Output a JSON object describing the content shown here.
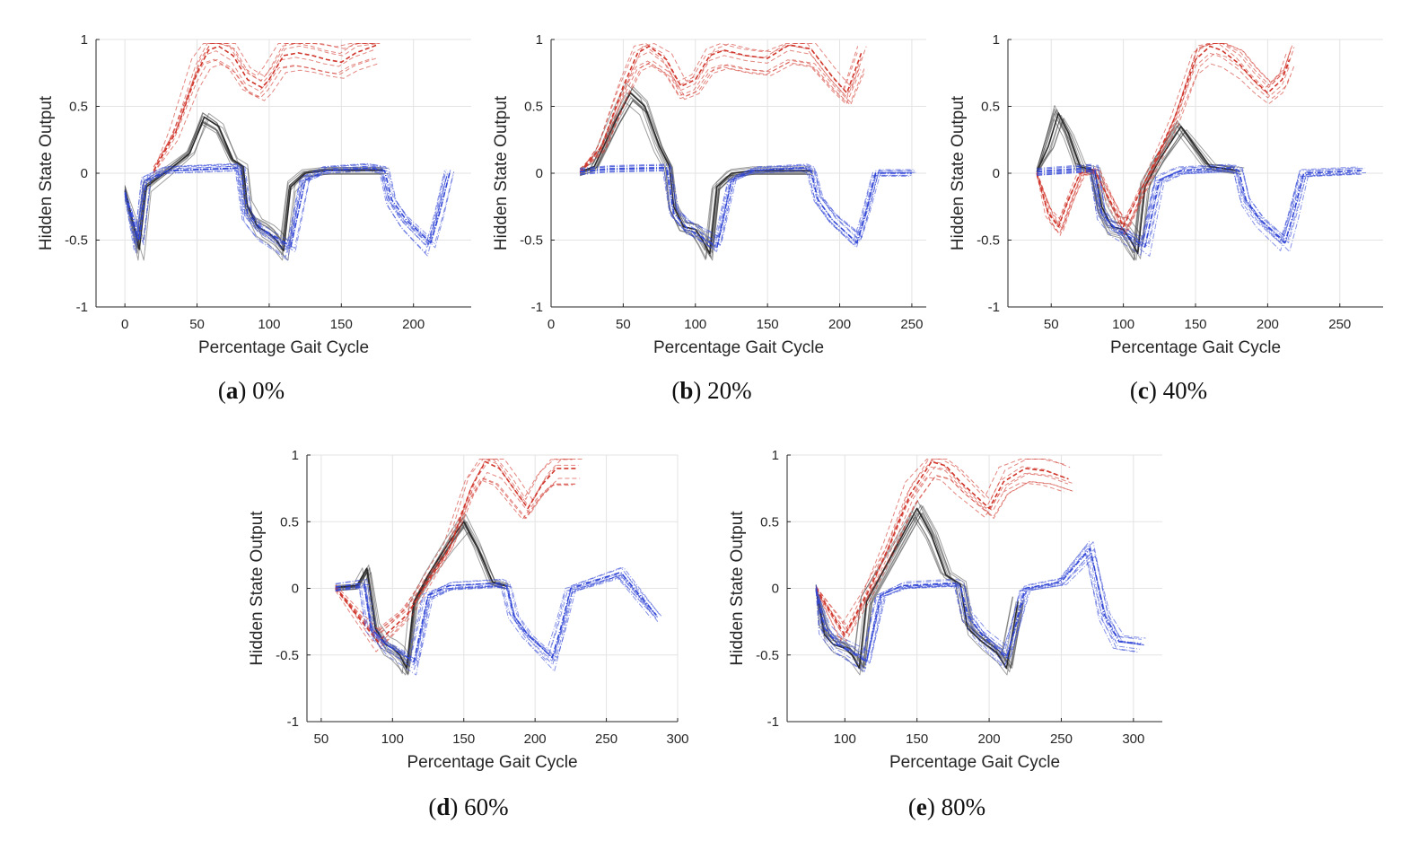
{
  "chart_data": [
    {
      "type": "line",
      "panel": "a",
      "caption": {
        "label": "a",
        "value": "0%"
      },
      "xlabel": "Percentage Gait Cycle",
      "ylabel": "Hidden State Output",
      "xlim": [
        -20,
        240
      ],
      "ylim": [
        -1,
        1
      ],
      "xticks": [
        0,
        50,
        100,
        150,
        200
      ],
      "yticks": [
        -1,
        -0.5,
        0,
        0.5,
        1
      ],
      "grid": true,
      "series": [
        {
          "name": "black-solid",
          "color": "#2b2b2b",
          "dash": "",
          "x": [
            0,
            10,
            15,
            30,
            45,
            55,
            65,
            75,
            82,
            85,
            92,
            100,
            105,
            110,
            115,
            125,
            140,
            160,
            180
          ],
          "y": [
            -0.13,
            -0.57,
            -0.1,
            0.02,
            0.15,
            0.42,
            0.35,
            0.1,
            0.05,
            -0.25,
            -0.4,
            -0.45,
            -0.5,
            -0.58,
            -0.1,
            0.0,
            0.02,
            0.02,
            0.02
          ]
        },
        {
          "name": "red-dashed",
          "color": "#d0362b",
          "dash": "5,3",
          "x": [
            20,
            35,
            50,
            58,
            65,
            75,
            85,
            95,
            100,
            110,
            120,
            130,
            140,
            150,
            160,
            175
          ],
          "y": [
            0.02,
            0.3,
            0.75,
            0.92,
            0.95,
            0.88,
            0.7,
            0.64,
            0.7,
            0.88,
            0.9,
            0.88,
            0.85,
            0.83,
            0.9,
            0.96
          ]
        },
        {
          "name": "blue-dashdot",
          "color": "#3347d6",
          "dash": "6,2,1,2",
          "x": [
            0,
            10,
            15,
            30,
            80,
            85,
            95,
            100,
            108,
            115,
            125,
            140,
            170,
            180,
            185,
            195,
            205,
            212,
            218,
            225
          ],
          "y": [
            -0.15,
            -0.5,
            -0.05,
            0.02,
            0.04,
            -0.3,
            -0.42,
            -0.45,
            -0.5,
            -0.55,
            -0.05,
            0.02,
            0.04,
            0.02,
            -0.2,
            -0.35,
            -0.45,
            -0.52,
            -0.3,
            0.0
          ]
        }
      ]
    },
    {
      "type": "line",
      "panel": "b",
      "caption": {
        "label": "b",
        "value": "20%"
      },
      "xlabel": "Percentage Gait Cycle",
      "ylabel": "Hidden State Output",
      "xlim": [
        0,
        260
      ],
      "ylim": [
        -1,
        1
      ],
      "xticks": [
        0,
        50,
        100,
        150,
        200,
        250
      ],
      "yticks": [
        -1,
        -0.5,
        0,
        0.5,
        1
      ],
      "grid": true,
      "series": [
        {
          "name": "black-solid",
          "color": "#2b2b2b",
          "dash": "",
          "x": [
            20,
            30,
            45,
            55,
            65,
            75,
            82,
            85,
            92,
            100,
            105,
            110,
            115,
            125,
            140,
            160,
            180
          ],
          "y": [
            0.01,
            0.05,
            0.4,
            0.6,
            0.5,
            0.2,
            0.05,
            -0.25,
            -0.4,
            -0.42,
            -0.5,
            -0.6,
            -0.1,
            0.0,
            0.02,
            0.02,
            0.02
          ]
        },
        {
          "name": "red-dashed",
          "color": "#d0362b",
          "dash": "5,3",
          "x": [
            20,
            35,
            50,
            60,
            68,
            80,
            90,
            100,
            110,
            120,
            135,
            150,
            165,
            180,
            195,
            205,
            215
          ],
          "y": [
            0.01,
            0.2,
            0.65,
            0.9,
            0.95,
            0.85,
            0.65,
            0.7,
            0.88,
            0.92,
            0.88,
            0.86,
            0.96,
            0.93,
            0.72,
            0.6,
            0.9
          ]
        },
        {
          "name": "blue-dashdot",
          "color": "#3347d6",
          "dash": "6,2,1,2",
          "x": [
            20,
            40,
            80,
            85,
            95,
            100,
            108,
            115,
            125,
            140,
            175,
            180,
            185,
            195,
            205,
            212,
            218,
            225,
            250
          ],
          "y": [
            0.01,
            0.03,
            0.04,
            -0.3,
            -0.42,
            -0.45,
            -0.5,
            -0.55,
            -0.05,
            0.02,
            0.04,
            0.02,
            -0.2,
            -0.35,
            -0.45,
            -0.52,
            -0.3,
            0.0,
            0.0
          ]
        }
      ]
    },
    {
      "type": "line",
      "panel": "c",
      "caption": {
        "label": "c",
        "value": "40%"
      },
      "xlabel": "Percentage Gait Cycle",
      "ylabel": "Hidden State Output",
      "xlim": [
        20,
        280
      ],
      "ylim": [
        -1,
        1
      ],
      "xticks": [
        50,
        100,
        150,
        200,
        250
      ],
      "yticks": [
        -1,
        -0.5,
        0,
        0.5,
        1
      ],
      "grid": true,
      "series": [
        {
          "name": "black-solid",
          "color": "#2b2b2b",
          "dash": "",
          "x": [
            40,
            48,
            55,
            62,
            70,
            80,
            85,
            92,
            100,
            105,
            110,
            115,
            125,
            140,
            150,
            160,
            180
          ],
          "y": [
            0.01,
            0.2,
            0.45,
            0.3,
            0.05,
            0.02,
            -0.25,
            -0.4,
            -0.42,
            -0.5,
            -0.6,
            -0.1,
            0.1,
            0.35,
            0.2,
            0.05,
            0.02
          ]
        },
        {
          "name": "red-dashed",
          "color": "#d0362b",
          "dash": "5,3",
          "x": [
            40,
            48,
            55,
            62,
            70,
            80,
            100,
            120,
            135,
            150,
            160,
            168,
            180,
            190,
            200,
            210,
            215
          ],
          "y": [
            0.0,
            -0.3,
            -0.4,
            -0.2,
            0.0,
            0.02,
            -0.4,
            0.05,
            0.4,
            0.85,
            0.95,
            0.92,
            0.82,
            0.7,
            0.6,
            0.7,
            0.85
          ]
        },
        {
          "name": "blue-dashdot",
          "color": "#3347d6",
          "dash": "6,2,1,2",
          "x": [
            40,
            80,
            85,
            95,
            100,
            108,
            115,
            125,
            140,
            175,
            180,
            185,
            195,
            205,
            212,
            218,
            225,
            265
          ],
          "y": [
            0.01,
            0.04,
            -0.3,
            -0.42,
            -0.45,
            -0.5,
            -0.55,
            -0.05,
            0.02,
            0.04,
            0.02,
            -0.2,
            -0.35,
            -0.45,
            -0.52,
            -0.3,
            0.0,
            0.02
          ]
        }
      ]
    },
    {
      "type": "line",
      "panel": "d",
      "caption": {
        "label": "d",
        "value": "60%"
      },
      "xlabel": "Percentage Gait Cycle",
      "ylabel": "Hidden State Output",
      "xlim": [
        40,
        300
      ],
      "ylim": [
        -1,
        1
      ],
      "xticks": [
        50,
        100,
        150,
        200,
        250,
        300
      ],
      "yticks": [
        -1,
        -0.5,
        0,
        0.5,
        1
      ],
      "grid": true,
      "series": [
        {
          "name": "black-solid",
          "color": "#2b2b2b",
          "dash": "",
          "x": [
            60,
            75,
            82,
            88,
            95,
            100,
            105,
            110,
            115,
            125,
            140,
            150,
            160,
            170,
            180
          ],
          "y": [
            0.01,
            0.02,
            0.15,
            -0.3,
            -0.42,
            -0.45,
            -0.5,
            -0.6,
            -0.1,
            0.1,
            0.35,
            0.5,
            0.3,
            0.05,
            0.02
          ]
        },
        {
          "name": "red-dashed",
          "color": "#d0362b",
          "dash": "5,3",
          "x": [
            60,
            90,
            110,
            125,
            140,
            155,
            165,
            175,
            185,
            195,
            205,
            215,
            230
          ],
          "y": [
            0.0,
            -0.4,
            -0.2,
            0.05,
            0.3,
            0.75,
            0.95,
            0.9,
            0.75,
            0.6,
            0.78,
            0.9,
            0.9
          ]
        },
        {
          "name": "blue-dashdot",
          "color": "#3347d6",
          "dash": "6,2,1,2",
          "x": [
            60,
            80,
            85,
            95,
            100,
            108,
            115,
            125,
            140,
            175,
            180,
            185,
            195,
            205,
            212,
            218,
            225,
            260,
            285
          ],
          "y": [
            0.01,
            0.04,
            -0.3,
            -0.42,
            -0.45,
            -0.5,
            -0.55,
            -0.05,
            0.02,
            0.04,
            0.02,
            -0.2,
            -0.35,
            -0.45,
            -0.52,
            -0.3,
            0.0,
            0.12,
            -0.2
          ]
        }
      ]
    },
    {
      "type": "line",
      "panel": "e",
      "caption": {
        "label": "e",
        "value": "80%"
      },
      "xlabel": "Percentage Gait Cycle",
      "ylabel": "Hidden State Output",
      "xlim": [
        60,
        320
      ],
      "ylim": [
        -1,
        1
      ],
      "xticks": [
        100,
        150,
        200,
        250,
        300
      ],
      "yticks": [
        -1,
        -0.5,
        0,
        0.5,
        1
      ],
      "grid": true,
      "series": [
        {
          "name": "black-solid",
          "color": "#2b2b2b",
          "dash": "",
          "x": [
            80,
            86,
            92,
            100,
            105,
            110,
            115,
            125,
            140,
            150,
            160,
            170,
            180,
            185,
            195,
            205,
            212,
            220
          ],
          "y": [
            0.0,
            -0.35,
            -0.42,
            -0.45,
            -0.5,
            -0.6,
            -0.1,
            0.1,
            0.4,
            0.6,
            0.4,
            0.1,
            0.03,
            -0.3,
            -0.4,
            -0.48,
            -0.6,
            -0.1
          ]
        },
        {
          "name": "red-dashed",
          "color": "#d0362b",
          "dash": "5,3",
          "x": [
            80,
            100,
            115,
            130,
            145,
            160,
            170,
            180,
            190,
            200,
            210,
            225,
            240,
            255
          ],
          "y": [
            0.0,
            -0.35,
            -0.05,
            0.3,
            0.7,
            0.95,
            0.92,
            0.8,
            0.7,
            0.6,
            0.8,
            0.9,
            0.88,
            0.82
          ]
        },
        {
          "name": "blue-dashdot",
          "color": "#3347d6",
          "dash": "6,2,1,2",
          "x": [
            80,
            86,
            95,
            100,
            108,
            115,
            125,
            140,
            175,
            180,
            185,
            195,
            205,
            212,
            218,
            225,
            250,
            270,
            280,
            290,
            305
          ],
          "y": [
            0.0,
            -0.3,
            -0.42,
            -0.45,
            -0.5,
            -0.55,
            -0.05,
            0.02,
            0.04,
            0.02,
            -0.2,
            -0.35,
            -0.45,
            -0.52,
            -0.3,
            0.0,
            0.05,
            0.3,
            -0.2,
            -0.4,
            -0.42
          ]
        }
      ]
    }
  ]
}
